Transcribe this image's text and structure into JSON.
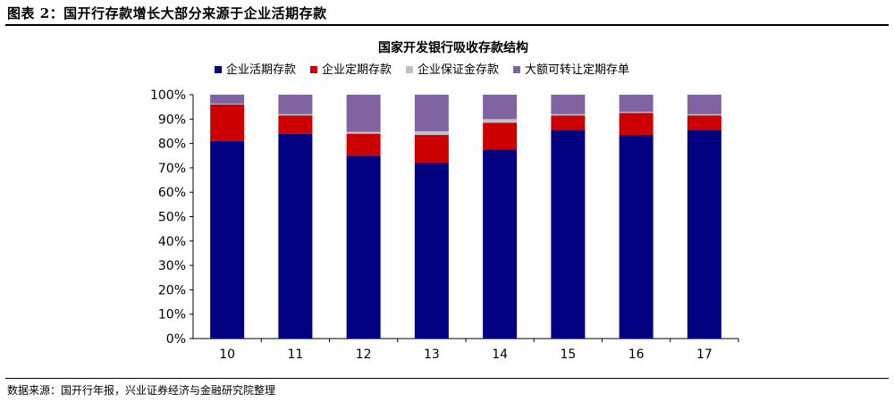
{
  "figure_caption": "图表 2：国开行存款增长大部分来源于企业活期存款",
  "source_note": "数据来源：国开行年报，兴业证券经济与金融研究院整理",
  "chart_data": {
    "type": "bar",
    "stacked": true,
    "title": "国家开发银行吸收存款结构",
    "categories": [
      "10",
      "11",
      "12",
      "13",
      "14",
      "15",
      "16",
      "17"
    ],
    "y_tick_labels": [
      "0%",
      "10%",
      "20%",
      "30%",
      "40%",
      "50%",
      "60%",
      "70%",
      "80%",
      "90%",
      "100%"
    ],
    "ylim": [
      0,
      100
    ],
    "grid": false,
    "legend_position": "top",
    "series": [
      {
        "name": "企业活期存款",
        "color": "#000080",
        "values": [
          81,
          84,
          75,
          72,
          77.5,
          85.5,
          83.5,
          85.5
        ]
      },
      {
        "name": "企业定期存款",
        "color": "#cc0000",
        "values": [
          15,
          7.5,
          9,
          11.5,
          11,
          6,
          9,
          6
        ]
      },
      {
        "name": "企业保证金存款",
        "color": "#c0c0c0",
        "values": [
          0.3,
          0.5,
          0.8,
          1.5,
          1.5,
          0.5,
          0.5,
          0.5
        ]
      },
      {
        "name": "大额可转让定期存单",
        "color": "#8064a2",
        "values": [
          3.7,
          8,
          15.2,
          15,
          10,
          8,
          7,
          8
        ]
      }
    ]
  }
}
